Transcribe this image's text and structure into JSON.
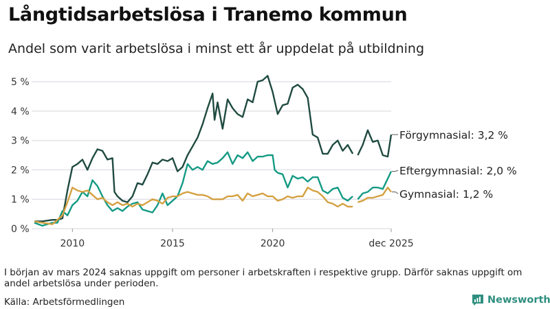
{
  "title": "Långtidsarbetslösa i Tranemo kommun",
  "subtitle": "Andel som varit arbetslösa i minst ett år uppdelat på utbildning",
  "note": "I början av mars 2024 saknas uppgift om personer i arbetskraften i respektive grupp. Därför saknas uppgift om andel arbetslösa under perioden.",
  "source": "Källa: Arbetsförmedlingen",
  "brand": "Newsworthy",
  "chart_data": {
    "type": "line",
    "title": "Långtidsarbetslösa i Tranemo kommun",
    "xlabel": "",
    "ylabel": "",
    "ylim": [
      0,
      5.2
    ],
    "xlim": [
      2008.1,
      2025.92
    ],
    "yticks": [
      {
        "v": 0,
        "label": "0 %"
      },
      {
        "v": 1,
        "label": "1 %"
      },
      {
        "v": 2,
        "label": "2 %"
      },
      {
        "v": 3,
        "label": "3 %"
      },
      {
        "v": 4,
        "label": "4 %"
      },
      {
        "v": 5,
        "label": "5 %"
      }
    ],
    "xticks": [
      {
        "v": 2010,
        "label": "2010"
      },
      {
        "v": 2015,
        "label": "2015"
      },
      {
        "v": 2020,
        "label": "2020"
      },
      {
        "v": 2025.92,
        "label": "dec 2025"
      }
    ],
    "grid": true,
    "series": [
      {
        "name": "Förgymnasial",
        "label": "Förgymnasial: 3,2 %",
        "color": "#1f4a40",
        "points": [
          [
            2008.1,
            0.25
          ],
          [
            2008.5,
            0.25
          ],
          [
            2009.0,
            0.3
          ],
          [
            2009.25,
            0.3
          ],
          [
            2009.5,
            0.35
          ],
          [
            2009.75,
            1.3
          ],
          [
            2010.0,
            2.1
          ],
          [
            2010.25,
            2.2
          ],
          [
            2010.5,
            2.35
          ],
          [
            2010.75,
            2.0
          ],
          [
            2011.0,
            2.4
          ],
          [
            2011.25,
            2.7
          ],
          [
            2011.5,
            2.65
          ],
          [
            2011.75,
            2.35
          ],
          [
            2012.0,
            2.4
          ],
          [
            2012.1,
            1.25
          ],
          [
            2012.25,
            1.1
          ],
          [
            2012.5,
            0.95
          ],
          [
            2012.75,
            0.9
          ],
          [
            2013.0,
            1.1
          ],
          [
            2013.25,
            1.55
          ],
          [
            2013.5,
            1.5
          ],
          [
            2013.75,
            1.85
          ],
          [
            2014.0,
            2.25
          ],
          [
            2014.25,
            2.2
          ],
          [
            2014.5,
            2.35
          ],
          [
            2014.75,
            2.3
          ],
          [
            2015.0,
            2.4
          ],
          [
            2015.25,
            1.95
          ],
          [
            2015.5,
            2.1
          ],
          [
            2015.75,
            2.5
          ],
          [
            2016.0,
            2.8
          ],
          [
            2016.25,
            3.1
          ],
          [
            2016.5,
            3.55
          ],
          [
            2016.75,
            4.1
          ],
          [
            2017.0,
            4.6
          ],
          [
            2017.1,
            3.7
          ],
          [
            2017.25,
            4.3
          ],
          [
            2017.5,
            3.4
          ],
          [
            2017.75,
            4.4
          ],
          [
            2018.0,
            4.1
          ],
          [
            2018.25,
            3.9
          ],
          [
            2018.5,
            3.8
          ],
          [
            2018.75,
            4.4
          ],
          [
            2019.0,
            4.3
          ],
          [
            2019.25,
            5.0
          ],
          [
            2019.5,
            5.05
          ],
          [
            2019.75,
            5.2
          ],
          [
            2020.0,
            4.65
          ],
          [
            2020.25,
            3.9
          ],
          [
            2020.5,
            4.2
          ],
          [
            2020.75,
            4.25
          ],
          [
            2021.0,
            4.8
          ],
          [
            2021.25,
            4.9
          ],
          [
            2021.5,
            4.75
          ],
          [
            2021.75,
            4.45
          ],
          [
            2022.0,
            3.2
          ],
          [
            2022.25,
            3.1
          ],
          [
            2022.5,
            2.55
          ],
          [
            2022.75,
            2.55
          ],
          [
            2023.0,
            2.85
          ],
          [
            2023.25,
            3.0
          ],
          [
            2023.5,
            2.65
          ],
          [
            2023.75,
            2.85
          ],
          [
            2024.0,
            2.55
          ],
          [
            2024.1,
            null
          ],
          [
            2024.25,
            2.5
          ],
          [
            2024.5,
            2.85
          ],
          [
            2024.75,
            3.35
          ],
          [
            2025.0,
            2.95
          ],
          [
            2025.25,
            3.0
          ],
          [
            2025.5,
            2.5
          ],
          [
            2025.75,
            2.45
          ],
          [
            2025.92,
            3.2
          ]
        ]
      },
      {
        "name": "Eftergymnasial",
        "label": "Eftergymnasial: 2,0 %",
        "color": "#149a84",
        "points": [
          [
            2008.1,
            0.2
          ],
          [
            2008.5,
            0.1
          ],
          [
            2009.0,
            0.2
          ],
          [
            2009.25,
            0.2
          ],
          [
            2009.5,
            0.6
          ],
          [
            2009.75,
            0.45
          ],
          [
            2010.0,
            0.8
          ],
          [
            2010.25,
            0.95
          ],
          [
            2010.5,
            1.25
          ],
          [
            2010.75,
            1.1
          ],
          [
            2011.0,
            1.65
          ],
          [
            2011.25,
            1.45
          ],
          [
            2011.5,
            1.1
          ],
          [
            2011.75,
            0.8
          ],
          [
            2012.0,
            0.6
          ],
          [
            2012.25,
            0.7
          ],
          [
            2012.5,
            0.6
          ],
          [
            2012.75,
            0.75
          ],
          [
            2013.0,
            0.85
          ],
          [
            2013.25,
            0.9
          ],
          [
            2013.5,
            0.65
          ],
          [
            2013.75,
            0.6
          ],
          [
            2014.0,
            0.55
          ],
          [
            2014.25,
            0.8
          ],
          [
            2014.5,
            1.2
          ],
          [
            2014.75,
            0.8
          ],
          [
            2015.0,
            0.95
          ],
          [
            2015.25,
            1.1
          ],
          [
            2015.5,
            1.55
          ],
          [
            2015.75,
            2.2
          ],
          [
            2016.0,
            2.0
          ],
          [
            2016.25,
            2.1
          ],
          [
            2016.5,
            2.0
          ],
          [
            2016.75,
            2.3
          ],
          [
            2017.0,
            2.2
          ],
          [
            2017.25,
            2.25
          ],
          [
            2017.5,
            2.4
          ],
          [
            2017.75,
            2.6
          ],
          [
            2018.0,
            2.2
          ],
          [
            2018.25,
            2.5
          ],
          [
            2018.5,
            2.4
          ],
          [
            2018.75,
            2.6
          ],
          [
            2019.0,
            2.3
          ],
          [
            2019.25,
            2.45
          ],
          [
            2019.5,
            2.45
          ],
          [
            2019.75,
            2.5
          ],
          [
            2020.0,
            2.5
          ],
          [
            2020.1,
            2.0
          ],
          [
            2020.25,
            1.9
          ],
          [
            2020.5,
            1.85
          ],
          [
            2020.75,
            1.4
          ],
          [
            2021.0,
            1.8
          ],
          [
            2021.25,
            1.7
          ],
          [
            2021.5,
            1.75
          ],
          [
            2021.75,
            1.6
          ],
          [
            2022.0,
            1.75
          ],
          [
            2022.25,
            1.75
          ],
          [
            2022.5,
            1.3
          ],
          [
            2022.75,
            1.2
          ],
          [
            2023.0,
            1.35
          ],
          [
            2023.25,
            1.4
          ],
          [
            2023.5,
            1.05
          ],
          [
            2023.75,
            0.95
          ],
          [
            2024.0,
            1.1
          ],
          [
            2024.1,
            null
          ],
          [
            2024.25,
            1.0
          ],
          [
            2024.5,
            1.2
          ],
          [
            2024.75,
            1.25
          ],
          [
            2025.0,
            1.4
          ],
          [
            2025.25,
            1.4
          ],
          [
            2025.5,
            1.35
          ],
          [
            2025.75,
            1.7
          ],
          [
            2025.92,
            1.95
          ]
        ]
      },
      {
        "name": "Gymnasial",
        "label": "Gymnasial: 1,2 %",
        "color": "#d4a040",
        "points": [
          [
            2008.1,
            0.25
          ],
          [
            2008.5,
            0.2
          ],
          [
            2009.0,
            0.15
          ],
          [
            2009.25,
            0.3
          ],
          [
            2009.5,
            0.45
          ],
          [
            2009.75,
            0.9
          ],
          [
            2010.0,
            1.4
          ],
          [
            2010.25,
            1.3
          ],
          [
            2010.5,
            1.25
          ],
          [
            2010.75,
            1.3
          ],
          [
            2011.0,
            1.15
          ],
          [
            2011.25,
            1.0
          ],
          [
            2011.5,
            1.05
          ],
          [
            2011.75,
            0.9
          ],
          [
            2012.0,
            0.8
          ],
          [
            2012.25,
            0.9
          ],
          [
            2012.5,
            0.8
          ],
          [
            2012.75,
            0.85
          ],
          [
            2013.0,
            0.75
          ],
          [
            2013.25,
            0.85
          ],
          [
            2013.5,
            0.8
          ],
          [
            2013.75,
            0.9
          ],
          [
            2014.0,
            1.0
          ],
          [
            2014.25,
            0.95
          ],
          [
            2014.5,
            0.85
          ],
          [
            2014.75,
            1.05
          ],
          [
            2015.0,
            1.1
          ],
          [
            2015.25,
            1.1
          ],
          [
            2015.5,
            1.2
          ],
          [
            2015.75,
            1.25
          ],
          [
            2016.0,
            1.2
          ],
          [
            2016.25,
            1.15
          ],
          [
            2016.5,
            1.15
          ],
          [
            2016.75,
            1.1
          ],
          [
            2017.0,
            1.0
          ],
          [
            2017.25,
            1.0
          ],
          [
            2017.5,
            1.0
          ],
          [
            2017.75,
            1.1
          ],
          [
            2018.0,
            1.1
          ],
          [
            2018.25,
            1.15
          ],
          [
            2018.5,
            0.95
          ],
          [
            2018.75,
            1.2
          ],
          [
            2019.0,
            1.1
          ],
          [
            2019.25,
            1.15
          ],
          [
            2019.5,
            1.2
          ],
          [
            2019.75,
            1.1
          ],
          [
            2020.0,
            1.1
          ],
          [
            2020.25,
            0.95
          ],
          [
            2020.5,
            1.0
          ],
          [
            2020.75,
            1.1
          ],
          [
            2021.0,
            1.05
          ],
          [
            2021.25,
            1.1
          ],
          [
            2021.5,
            1.1
          ],
          [
            2021.75,
            1.4
          ],
          [
            2022.0,
            1.3
          ],
          [
            2022.25,
            1.25
          ],
          [
            2022.5,
            1.1
          ],
          [
            2022.75,
            0.9
          ],
          [
            2023.0,
            0.85
          ],
          [
            2023.25,
            0.75
          ],
          [
            2023.5,
            0.85
          ],
          [
            2023.75,
            0.75
          ],
          [
            2024.0,
            0.75
          ],
          [
            2024.1,
            null
          ],
          [
            2024.25,
            0.9
          ],
          [
            2024.5,
            0.95
          ],
          [
            2024.75,
            1.05
          ],
          [
            2025.0,
            1.05
          ],
          [
            2025.25,
            1.1
          ],
          [
            2025.5,
            1.15
          ],
          [
            2025.75,
            1.4
          ],
          [
            2025.92,
            1.25
          ]
        ]
      }
    ]
  }
}
